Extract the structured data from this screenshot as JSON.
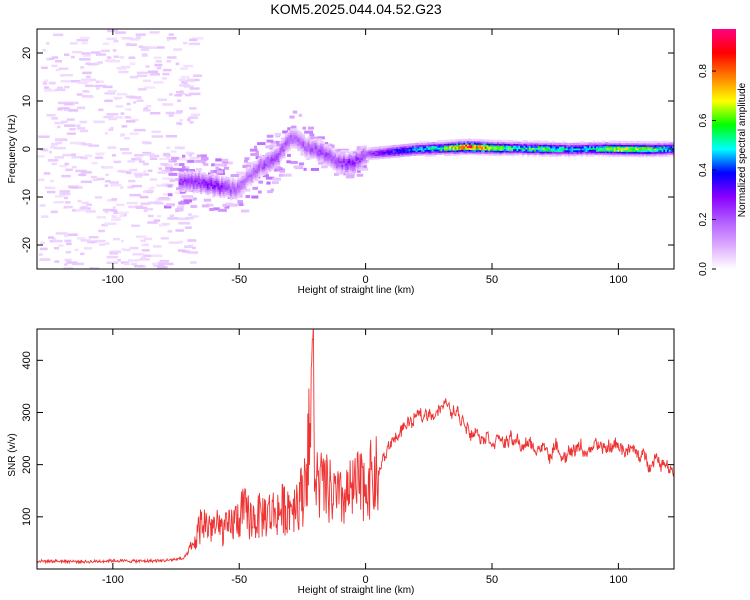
{
  "figure": {
    "title": "KOM5.2025.044.04.52.G23"
  },
  "chart_data": [
    {
      "type": "heatmap",
      "xlabel": "Height of straight line (km)",
      "ylabel": "Frequency (Hz)",
      "xlim": [
        -130,
        122
      ],
      "ylim": [
        -25,
        25
      ],
      "xticks": [
        -100,
        -50,
        0,
        50,
        100
      ],
      "yticks": [
        -20,
        -10,
        0,
        10,
        20
      ],
      "colorbar": {
        "label": "Normalized spectral amplitude",
        "range": [
          0,
          0.97
        ],
        "ticks": [
          0.0,
          0.2,
          0.4,
          0.6,
          0.8
        ],
        "colormap": [
          "#ffffff",
          "#dca8ff",
          "#b15cff",
          "#8a00ff",
          "#0000ff",
          "#00ffff",
          "#00ff00",
          "#ffff00",
          "#ff8000",
          "#ff0000",
          "#ff0080"
        ]
      },
      "ridge": {
        "x": [
          -72,
          -60,
          -52,
          -46,
          -42,
          -36,
          -30,
          -24,
          -18,
          -12,
          -6,
          0,
          10,
          20,
          30,
          40,
          50,
          60,
          70,
          80,
          90,
          100,
          110,
          122
        ],
        "freq": [
          -6.5,
          -7.5,
          -8.5,
          -5.5,
          -3.5,
          -2.0,
          2.5,
          0.5,
          -0.5,
          -2.5,
          -3.0,
          -1.0,
          -0.5,
          0.0,
          0.2,
          0.5,
          0.3,
          0.2,
          0.1,
          0.0,
          0.1,
          0.1,
          0.0,
          0.1
        ],
        "amplitude": [
          0.25,
          0.3,
          0.2,
          0.18,
          0.22,
          0.25,
          0.2,
          0.2,
          0.25,
          0.22,
          0.3,
          0.22,
          0.4,
          0.5,
          0.6,
          0.95,
          0.75,
          0.55,
          0.65,
          0.5,
          0.55,
          0.75,
          0.7,
          0.55
        ]
      }
    },
    {
      "type": "line",
      "xlabel": "Height of straight line (km)",
      "ylabel": "SNR (v/v)",
      "xlim": [
        -130,
        122
      ],
      "ylim": [
        0,
        460
      ],
      "xticks": [
        -100,
        -50,
        0,
        50,
        100
      ],
      "yticks": [
        100,
        200,
        300,
        400
      ],
      "color": "#ee3333",
      "series": [
        {
          "x": [
            -130,
            -120,
            -110,
            -100,
            -90,
            -80,
            -72,
            -68,
            -65,
            -60,
            -55,
            -50,
            -48,
            -45,
            -40,
            -35,
            -30,
            -25,
            -22,
            -21,
            -20,
            -15,
            -10,
            -5,
            0,
            5,
            10,
            15,
            20,
            25,
            30,
            35,
            40,
            45,
            50,
            55,
            60,
            65,
            70,
            75,
            80,
            85,
            90,
            95,
            100,
            105,
            110,
            115,
            120,
            122
          ],
          "y": [
            15,
            15,
            14,
            16,
            15,
            16,
            20,
            45,
            90,
            80,
            75,
            100,
            110,
            95,
            105,
            110,
            120,
            140,
            260,
            440,
            170,
            150,
            130,
            150,
            165,
            180,
            245,
            270,
            285,
            300,
            315,
            300,
            280,
            265,
            255,
            245,
            240,
            235,
            230,
            225,
            228,
            232,
            225,
            230,
            240,
            225,
            210,
            215,
            200,
            195
          ]
        }
      ]
    }
  ]
}
